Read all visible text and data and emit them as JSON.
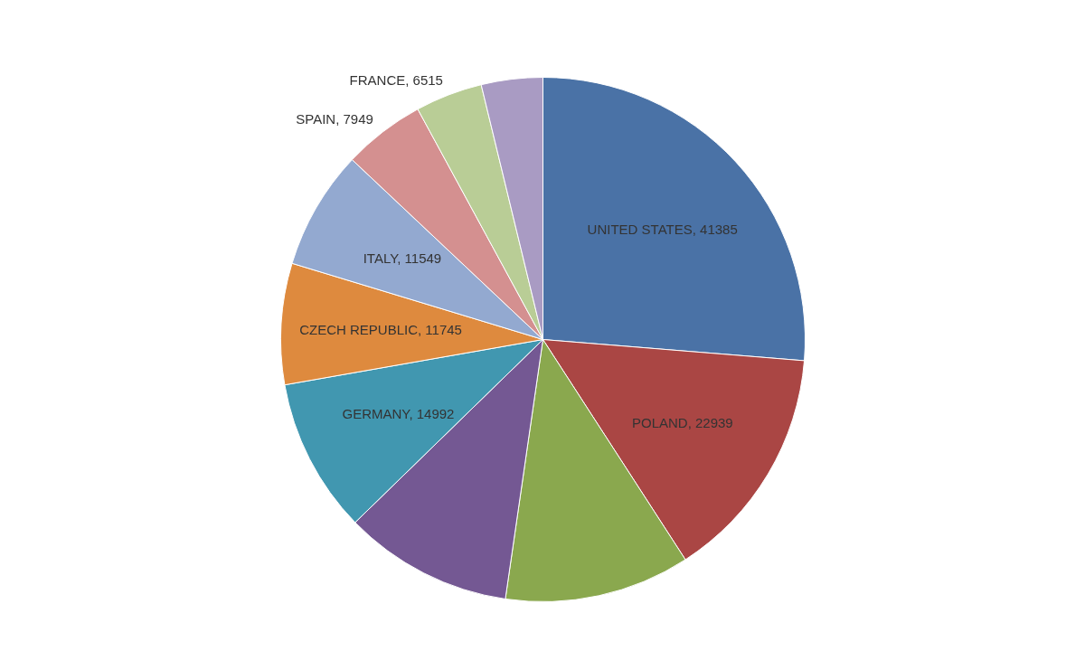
{
  "chart_data": {
    "type": "pie",
    "categories": [
      "UNITED STATES",
      "POLAND",
      null,
      null,
      "GERMANY",
      "CZECH REPUBLIC",
      "ITALY",
      "SPAIN",
      "FRANCE",
      null
    ],
    "values": [
      41385,
      22939,
      18000,
      16400,
      14992,
      11745,
      11549,
      7949,
      6515,
      5960
    ],
    "value_labels": [
      "41385",
      "22939",
      null,
      null,
      "14992",
      "11745",
      "11549",
      "7949",
      "6515",
      null
    ],
    "colors": [
      "#4a72a6",
      "#aa4644",
      "#8aa84e",
      "#745893",
      "#4197b0",
      "#de8a3e",
      "#93a9d0",
      "#d49090",
      "#b9cd96",
      "#a99bc3"
    ]
  }
}
